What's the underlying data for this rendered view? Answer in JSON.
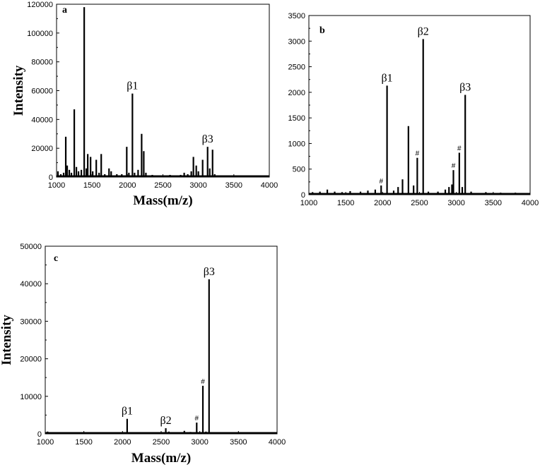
{
  "chart_data": [
    {
      "type": "bar",
      "panel": "a",
      "xlabel": "Mass(m/z)",
      "ylabel": "Intensity",
      "xlim": [
        1000,
        4000
      ],
      "ylim": [
        0,
        120000
      ],
      "xticks": [
        1000,
        1500,
        2000,
        2500,
        3000,
        3500,
        4000
      ],
      "yticks": [
        0,
        20000,
        40000,
        60000,
        80000,
        100000,
        120000
      ],
      "peaks": [
        {
          "x": 1020,
          "y": 4000
        },
        {
          "x": 1060,
          "y": 2000
        },
        {
          "x": 1100,
          "y": 3000
        },
        {
          "x": 1130,
          "y": 28000
        },
        {
          "x": 1150,
          "y": 8000
        },
        {
          "x": 1180,
          "y": 5000
        },
        {
          "x": 1210,
          "y": 3000
        },
        {
          "x": 1250,
          "y": 47000
        },
        {
          "x": 1280,
          "y": 7000
        },
        {
          "x": 1310,
          "y": 4000
        },
        {
          "x": 1350,
          "y": 5000
        },
        {
          "x": 1390,
          "y": 118000
        },
        {
          "x": 1420,
          "y": 6000
        },
        {
          "x": 1440,
          "y": 16000
        },
        {
          "x": 1480,
          "y": 14000
        },
        {
          "x": 1510,
          "y": 4000
        },
        {
          "x": 1560,
          "y": 12000
        },
        {
          "x": 1600,
          "y": 3000
        },
        {
          "x": 1630,
          "y": 16000
        },
        {
          "x": 1680,
          "y": 2000
        },
        {
          "x": 1740,
          "y": 6000
        },
        {
          "x": 1770,
          "y": 4000
        },
        {
          "x": 1850,
          "y": 2000
        },
        {
          "x": 1920,
          "y": 2000
        },
        {
          "x": 1990,
          "y": 21000
        },
        {
          "x": 2020,
          "y": 3000
        },
        {
          "x": 2070,
          "y": 58000
        },
        {
          "x": 2100,
          "y": 3000
        },
        {
          "x": 2150,
          "y": 5000
        },
        {
          "x": 2200,
          "y": 30000
        },
        {
          "x": 2230,
          "y": 18000
        },
        {
          "x": 2260,
          "y": 3000
        },
        {
          "x": 2350,
          "y": 1500
        },
        {
          "x": 2420,
          "y": 1000
        },
        {
          "x": 2550,
          "y": 1000
        },
        {
          "x": 2600,
          "y": 1500
        },
        {
          "x": 2750,
          "y": 1500
        },
        {
          "x": 2800,
          "y": 3000
        },
        {
          "x": 2850,
          "y": 2000
        },
        {
          "x": 2900,
          "y": 4000
        },
        {
          "x": 2930,
          "y": 14000
        },
        {
          "x": 2970,
          "y": 8000
        },
        {
          "x": 3000,
          "y": 4000
        },
        {
          "x": 3060,
          "y": 12000
        },
        {
          "x": 3130,
          "y": 21000
        },
        {
          "x": 3160,
          "y": 6000
        },
        {
          "x": 3200,
          "y": 19000
        },
        {
          "x": 3230,
          "y": 2000
        }
      ],
      "annotations": [
        {
          "label": "β1",
          "x": 2070,
          "y": 58000
        },
        {
          "label": "β3",
          "x": 3130,
          "y": 21000
        }
      ],
      "hash_marks": []
    },
    {
      "type": "bar",
      "panel": "b",
      "xlabel": "",
      "ylabel": "",
      "xlim": [
        1000,
        4000
      ],
      "ylim": [
        0,
        3500
      ],
      "xticks": [
        1000,
        1500,
        2000,
        2500,
        3000,
        3500,
        4000
      ],
      "yticks": [
        0,
        500,
        1000,
        1500,
        2000,
        2500,
        3000,
        3500
      ],
      "peaks": [
        {
          "x": 1050,
          "y": 50
        },
        {
          "x": 1150,
          "y": 60
        },
        {
          "x": 1250,
          "y": 100
        },
        {
          "x": 1350,
          "y": 60
        },
        {
          "x": 1450,
          "y": 50
        },
        {
          "x": 1560,
          "y": 70
        },
        {
          "x": 1700,
          "y": 60
        },
        {
          "x": 1800,
          "y": 80
        },
        {
          "x": 1900,
          "y": 100
        },
        {
          "x": 1980,
          "y": 180
        },
        {
          "x": 2060,
          "y": 2130
        },
        {
          "x": 2150,
          "y": 80
        },
        {
          "x": 2210,
          "y": 150
        },
        {
          "x": 2270,
          "y": 300
        },
        {
          "x": 2350,
          "y": 1340
        },
        {
          "x": 2420,
          "y": 180
        },
        {
          "x": 2470,
          "y": 720
        },
        {
          "x": 2550,
          "y": 3040
        },
        {
          "x": 2620,
          "y": 60
        },
        {
          "x": 2750,
          "y": 60
        },
        {
          "x": 2850,
          "y": 100
        },
        {
          "x": 2900,
          "y": 150
        },
        {
          "x": 2940,
          "y": 200
        },
        {
          "x": 2960,
          "y": 480
        },
        {
          "x": 3040,
          "y": 820
        },
        {
          "x": 3080,
          "y": 150
        },
        {
          "x": 3120,
          "y": 1950
        },
        {
          "x": 3200,
          "y": 60
        },
        {
          "x": 3400,
          "y": 50
        },
        {
          "x": 3600,
          "y": 40
        },
        {
          "x": 3800,
          "y": 40
        }
      ],
      "annotations": [
        {
          "label": "β1",
          "x": 2060,
          "y": 2130
        },
        {
          "label": "β2",
          "x": 2550,
          "y": 3040
        },
        {
          "label": "β3",
          "x": 3120,
          "y": 1950
        }
      ],
      "hash_marks": [
        {
          "label": "#",
          "x": 1980,
          "y": 180
        },
        {
          "label": "#",
          "x": 2470,
          "y": 720
        },
        {
          "label": "#",
          "x": 2960,
          "y": 480
        },
        {
          "label": "#",
          "x": 3040,
          "y": 820
        }
      ]
    },
    {
      "type": "bar",
      "panel": "c",
      "xlabel": "Mass(m/z)",
      "ylabel": "Intensity",
      "xlim": [
        1000,
        4000
      ],
      "ylim": [
        0,
        50000
      ],
      "xticks": [
        1000,
        1500,
        2000,
        2500,
        3000,
        3500,
        4000
      ],
      "yticks": [
        0,
        10000,
        20000,
        30000,
        40000,
        50000
      ],
      "peaks": [
        {
          "x": 1030,
          "y": 600
        },
        {
          "x": 1100,
          "y": 300
        },
        {
          "x": 1300,
          "y": 300
        },
        {
          "x": 1500,
          "y": 300
        },
        {
          "x": 1700,
          "y": 300
        },
        {
          "x": 1900,
          "y": 400
        },
        {
          "x": 2060,
          "y": 4000
        },
        {
          "x": 2200,
          "y": 300
        },
        {
          "x": 2420,
          "y": 300
        },
        {
          "x": 2560,
          "y": 1500
        },
        {
          "x": 2600,
          "y": 600
        },
        {
          "x": 2800,
          "y": 800
        },
        {
          "x": 2880,
          "y": 500
        },
        {
          "x": 2960,
          "y": 3000
        },
        {
          "x": 3040,
          "y": 12800
        },
        {
          "x": 3080,
          "y": 600
        },
        {
          "x": 3120,
          "y": 41200
        },
        {
          "x": 3200,
          "y": 300
        }
      ],
      "annotations": [
        {
          "label": "β1",
          "x": 2060,
          "y": 4000
        },
        {
          "label": "β2",
          "x": 2560,
          "y": 1500
        },
        {
          "label": "β3",
          "x": 3120,
          "y": 41200
        }
      ],
      "hash_marks": [
        {
          "label": "#",
          "x": 2960,
          "y": 3000
        },
        {
          "label": "#",
          "x": 3040,
          "y": 12800
        }
      ]
    }
  ]
}
